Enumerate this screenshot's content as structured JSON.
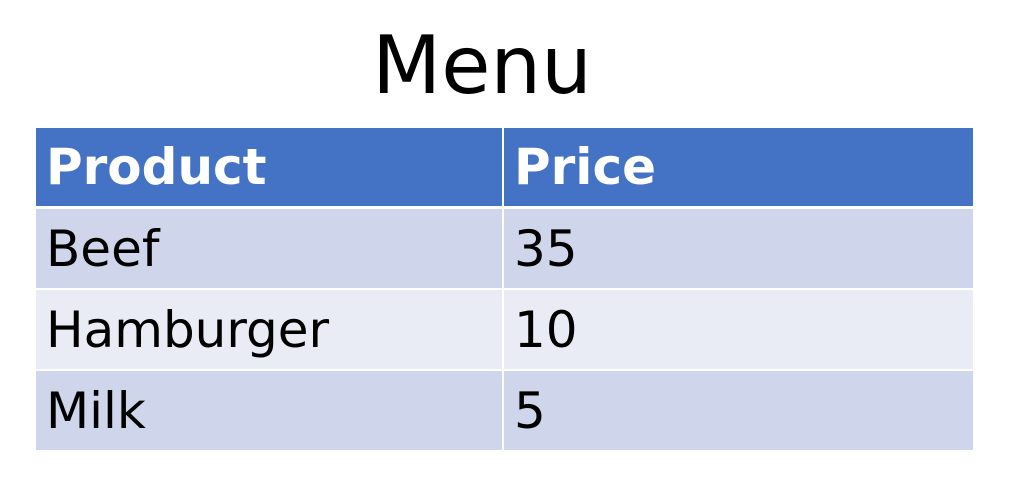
{
  "title": "Menu",
  "table": {
    "headers": [
      "Product",
      "Price"
    ],
    "rows": [
      {
        "product": "Beef",
        "price": "35"
      },
      {
        "product": "Hamburger",
        "price": "10"
      },
      {
        "product": "Milk",
        "price": "5"
      }
    ]
  },
  "colors": {
    "header_bg": "#4472c4",
    "row_band_dark": "#cfd5ea",
    "row_band_light": "#e9ebf5"
  }
}
